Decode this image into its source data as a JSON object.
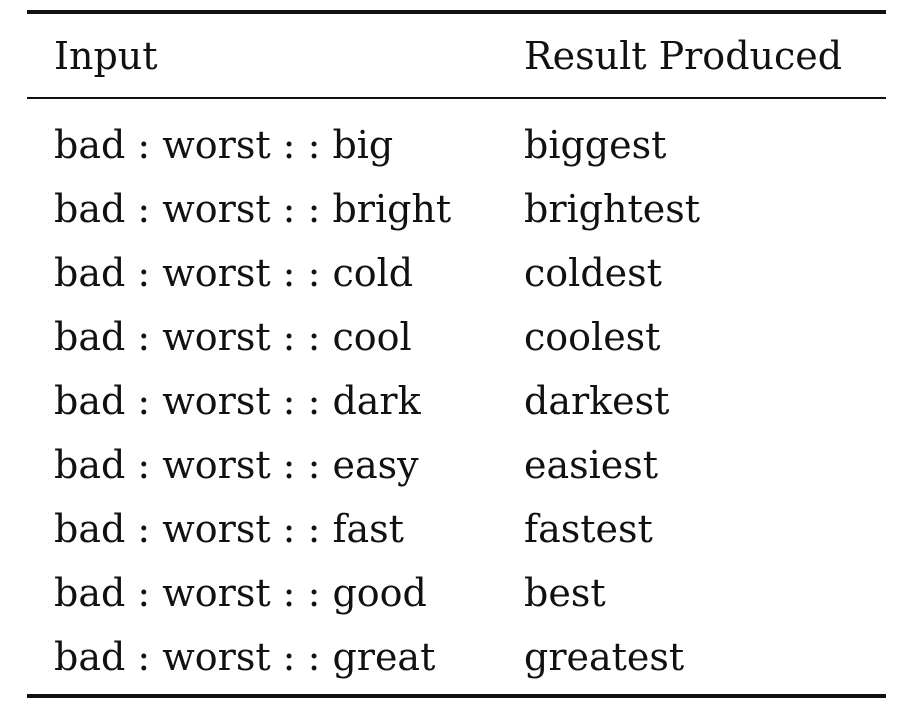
{
  "table": {
    "headers": {
      "input": "Input",
      "result": "Result Produced"
    },
    "rows": [
      {
        "input": "bad : worst : : big",
        "result": "biggest"
      },
      {
        "input": "bad : worst : : bright",
        "result": "brightest"
      },
      {
        "input": "bad : worst : : cold",
        "result": "coldest"
      },
      {
        "input": "bad : worst : : cool",
        "result": "coolest"
      },
      {
        "input": "bad : worst : : dark",
        "result": "darkest"
      },
      {
        "input": "bad : worst : : easy",
        "result": "easiest"
      },
      {
        "input": "bad : worst : : fast",
        "result": "fastest"
      },
      {
        "input": "bad : worst : : good",
        "result": "best"
      },
      {
        "input": "bad : worst : : great",
        "result": "greatest"
      }
    ]
  }
}
